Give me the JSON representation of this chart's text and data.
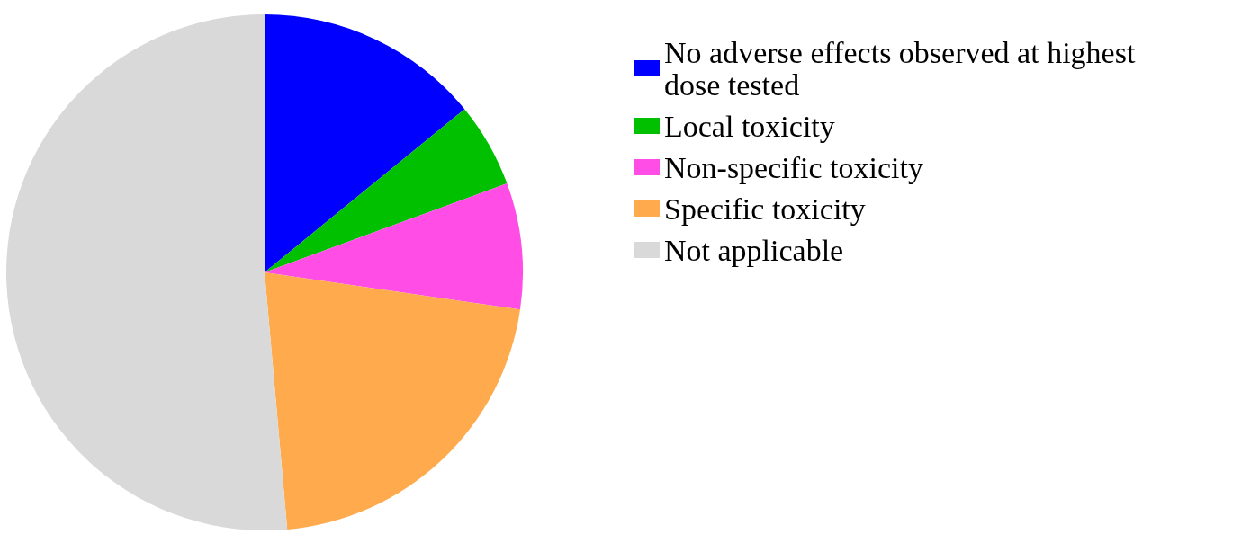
{
  "chart_data": {
    "type": "pie",
    "categories": [
      "No adverse effects observed at highest dose tested",
      "Local toxicity",
      "Non-specific toxicity",
      "Specific toxicity",
      "Not applicable"
    ],
    "values": [
      14.1,
      5.3,
      7.9,
      21.3,
      51.4
    ],
    "colors": [
      "#0000ff",
      "#00c000",
      "#ff4de6",
      "#ffaa4d",
      "#d9d9d9"
    ],
    "legend": "right"
  }
}
